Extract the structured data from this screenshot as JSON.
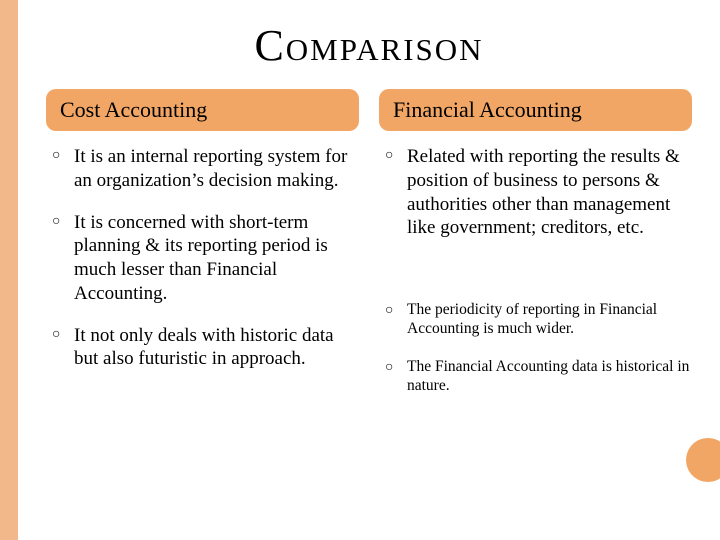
{
  "colors": {
    "accent": "#f2a665",
    "leftbar": "#f2b88a",
    "background": "#ffffff",
    "text": "#000000"
  },
  "title": "Comparison",
  "left": {
    "header": "Cost Accounting",
    "items": [
      {
        "text": "It is an internal reporting system for an organization’s decision making.",
        "size": "large"
      },
      {
        "text": "It is concerned with short-term planning & its reporting period is much lesser than Financial Accounting.",
        "size": "large"
      },
      {
        "text": "It not only deals with historic data but also futuristic in approach.",
        "size": "large"
      }
    ]
  },
  "right": {
    "header": "Financial Accounting",
    "items": [
      {
        "text": "Related with reporting the results & position of business to persons & authorities other than management like government; creditors, etc.",
        "size": "large"
      },
      {
        "text": "The  periodicity of reporting in Financial Accounting is much wider.",
        "size": "small"
      },
      {
        "text": "The Financial Accounting data is historical in nature.",
        "size": "small"
      }
    ]
  }
}
